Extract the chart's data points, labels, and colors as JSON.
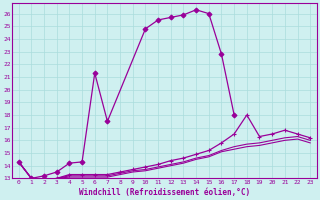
{
  "xlabel": "Windchill (Refroidissement éolien,°C)",
  "ylabel": "",
  "bg_color": "#cff0f0",
  "line_color": "#990099",
  "grid_color": "#aadddd",
  "xlim": [
    -0.5,
    23.5
  ],
  "ylim": [
    13,
    26.8
  ],
  "yticks": [
    13,
    14,
    15,
    16,
    17,
    18,
    19,
    20,
    21,
    22,
    23,
    24,
    25,
    26
  ],
  "xticks": [
    0,
    1,
    2,
    3,
    4,
    5,
    6,
    7,
    8,
    9,
    10,
    11,
    12,
    13,
    14,
    15,
    16,
    17,
    18,
    19,
    20,
    21,
    22,
    23
  ],
  "curves": [
    {
      "x": [
        0,
        1,
        2,
        3,
        4,
        5,
        6,
        7,
        10,
        11,
        12,
        13,
        14,
        15,
        16,
        17,
        18,
        19,
        20,
        21,
        22,
        23
      ],
      "y": [
        14.3,
        13.0,
        13.2,
        13.5,
        14.2,
        14.3,
        21.3,
        17.5,
        24.8,
        25.5,
        25.7,
        25.9,
        26.3,
        26.0,
        22.8,
        18.0,
        null,
        null,
        null,
        null,
        null,
        null
      ],
      "marker": "D",
      "ms": 2.5,
      "lw": 0.9
    },
    {
      "x": [
        0,
        1,
        2,
        3,
        4,
        5,
        6,
        7,
        8,
        9,
        10,
        11,
        12,
        13,
        14,
        15,
        16,
        17,
        18,
        19,
        20,
        21,
        22,
        23
      ],
      "y": [
        14.3,
        13.0,
        12.8,
        13.0,
        13.3,
        13.3,
        13.3,
        13.3,
        13.5,
        13.7,
        13.9,
        14.1,
        14.4,
        14.6,
        14.9,
        15.2,
        15.8,
        16.5,
        18.0,
        16.3,
        16.5,
        16.8,
        16.5,
        16.2
      ],
      "marker": "+",
      "ms": 3.5,
      "lw": 0.9
    },
    {
      "x": [
        0,
        1,
        2,
        3,
        4,
        5,
        6,
        7,
        8,
        9,
        10,
        11,
        12,
        13,
        14,
        15,
        16,
        17,
        18,
        19,
        20,
        21,
        22,
        23
      ],
      "y": [
        14.3,
        13.0,
        12.8,
        13.0,
        13.2,
        13.2,
        13.2,
        13.2,
        13.4,
        13.6,
        13.7,
        13.9,
        14.1,
        14.3,
        14.6,
        14.8,
        15.2,
        15.5,
        15.7,
        15.8,
        16.0,
        16.2,
        16.3,
        16.0
      ],
      "marker": null,
      "ms": 0,
      "lw": 0.8
    },
    {
      "x": [
        0,
        1,
        2,
        3,
        4,
        5,
        6,
        7,
        8,
        9,
        10,
        11,
        12,
        13,
        14,
        15,
        16,
        17,
        18,
        19,
        20,
        21,
        22,
        23
      ],
      "y": [
        14.3,
        13.0,
        12.8,
        13.0,
        13.1,
        13.1,
        13.1,
        13.1,
        13.3,
        13.5,
        13.6,
        13.8,
        14.0,
        14.2,
        14.5,
        14.7,
        15.1,
        15.3,
        15.5,
        15.6,
        15.8,
        16.0,
        16.1,
        15.8
      ],
      "marker": null,
      "ms": 0,
      "lw": 0.8
    }
  ]
}
